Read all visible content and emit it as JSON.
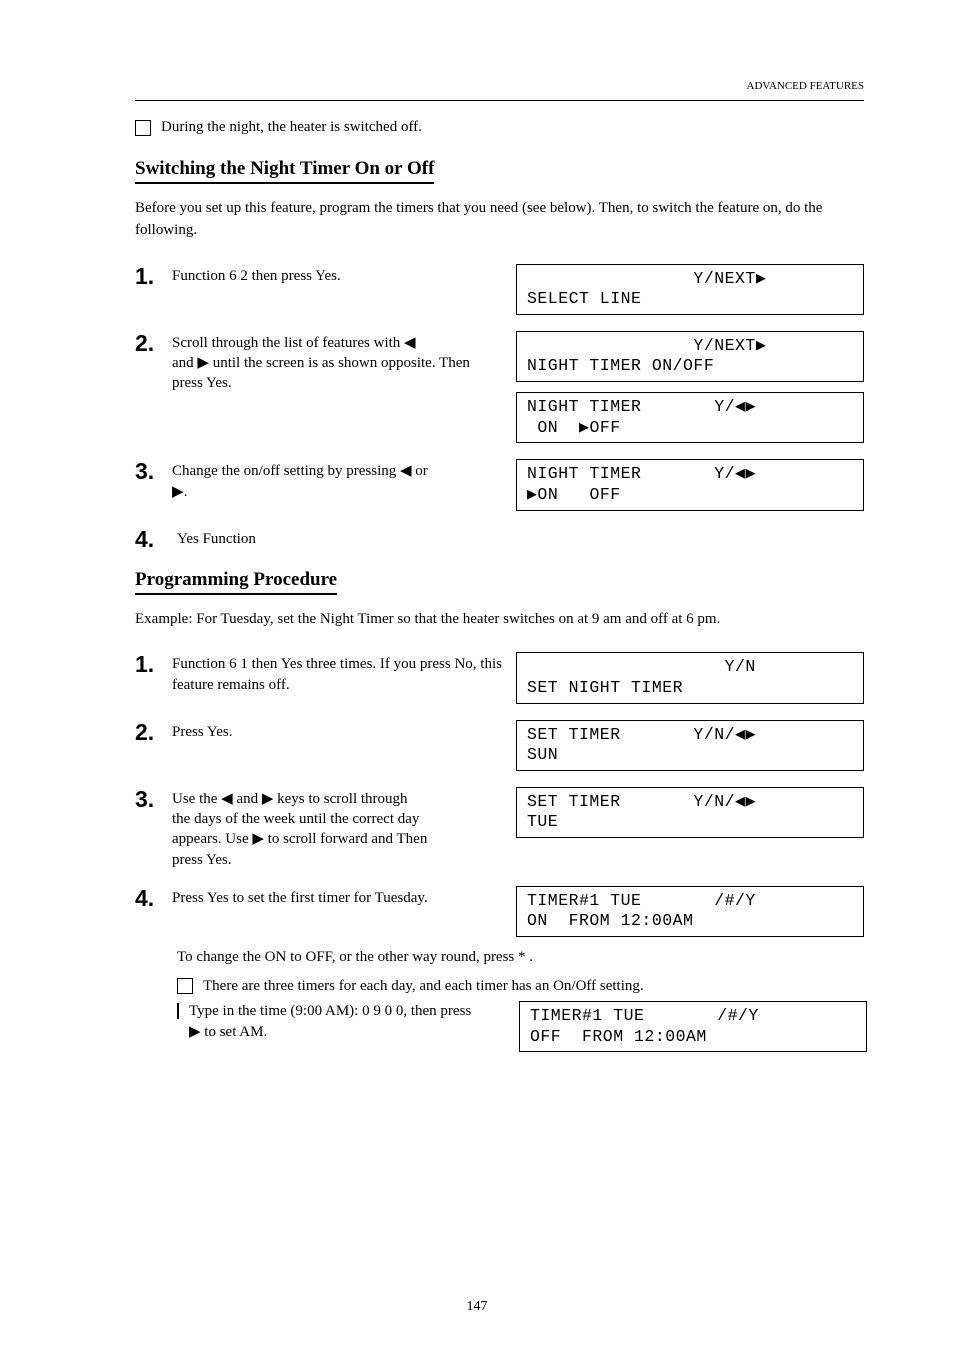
{
  "page": {
    "headline": "ADVANCED FEATURES",
    "number": "147"
  },
  "note_top": "During the night, the heater is switched off.",
  "section1": {
    "title": "Switching the Night Timer On or Off",
    "intro": "Before you set up this feature, program the timers that you need (see below). Then, to switch the feature on, do the following.",
    "step1_label": "1.",
    "step1_text": "Function 6 2 then press Yes.",
    "step2_label": "2.",
    "step2_text_line1": "Scroll through the list of features with ◀",
    "step2_text_line2": "and ▶ until the screen is as shown opposite. Then press Yes.",
    "step3_label": "3.",
    "step3_text_pre": "Change the on/off setting by pressing ◀ or",
    "step3_text_post": "▶.",
    "step4_label": "4.",
    "step4_text": "Yes  Function",
    "lcd1_l1": "                Y/NEXT▶",
    "lcd1_l2": "SELECT LINE",
    "lcd2_l1": "                Y/NEXT▶",
    "lcd2_l2": "NIGHT TIMER ON/OFF",
    "lcd3_l1": "NIGHT TIMER       Y/◀▶",
    "lcd3_l2": " ON  ▶OFF",
    "lcd4_l1": "NIGHT TIMER       Y/◀▶",
    "lcd4_l2": "▶ON   OFF"
  },
  "section2": {
    "title": "Programming Procedure",
    "intro": "Example: For Tuesday, set the Night Timer so that the heater switches on at 9 am and off at 6 pm.",
    "step1_label": "1.",
    "step1_text": "Function 6 1 then Yes three times. If you press No, this feature remains off.",
    "step2_label": "2.",
    "step2_text": "Press Yes.",
    "step3_label": "3.",
    "step3_text_l1": "Use the ◀ and ▶ keys to scroll through",
    "step3_text_l2": "the days of the week until the correct day",
    "step3_text_l3": "appears. Use ▶ to scroll forward and Then",
    "step3_text_l4": "press Yes.",
    "step4_label": "4.",
    "step4_text": "Press Yes to set the first timer for Tuesday.",
    "after4": "To change the ON to OFF, or the other way round, press * .",
    "sub_note1": "There are three timers for each day, and each timer has an On/Off setting.",
    "sub_note2_l1": "Type in the time (9:00 AM): 0 9 0 0, then press ",
    "sub_note2_l2": "▶ to set AM.",
    "lcd1_l1": "                   Y/N",
    "lcd1_l2": "SET NIGHT TIMER",
    "lcd2_l1": "SET TIMER       Y/N/◀▶",
    "lcd2_l2": "SUN",
    "lcd3_l1": "SET TIMER       Y/N/◀▶",
    "lcd3_l2": "TUE",
    "lcd4_l1": "TIMER#1 TUE       /#/Y",
    "lcd4_l2": "ON  FROM 12:00AM",
    "lcd5_l1": "TIMER#1 TUE       /#/Y",
    "lcd5_l2": "OFF  FROM 12:00AM"
  }
}
